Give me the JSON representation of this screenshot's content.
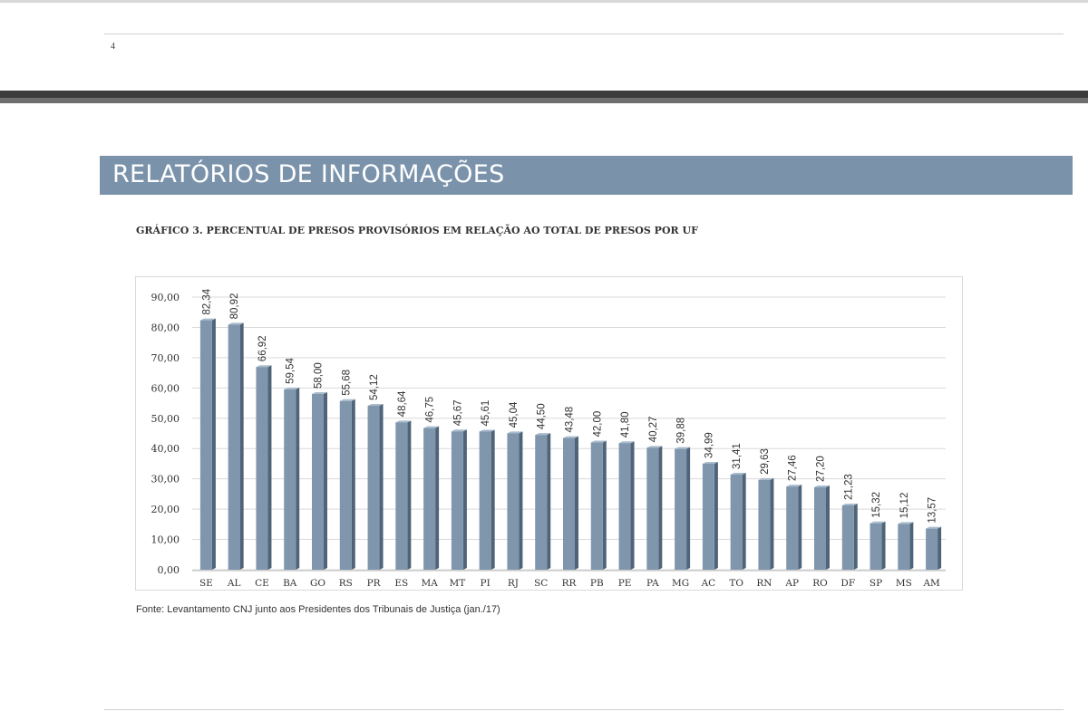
{
  "top_page": {
    "page_number": "4"
  },
  "section_banner": {
    "title": "RELATÓRIOS DE INFORMAÇÕES"
  },
  "chart_data": {
    "type": "bar",
    "title": "GRÁFICO 3. PERCENTUAL DE PRESOS PROVISÓRIOS EM RELAÇÃO AO TOTAL DE PRESOS POR UF",
    "categories": [
      "SE",
      "AL",
      "CE",
      "BA",
      "GO",
      "RS",
      "PR",
      "ES",
      "MA",
      "MT",
      "PI",
      "RJ",
      "SC",
      "RR",
      "PB",
      "PE",
      "PA",
      "MG",
      "AC",
      "TO",
      "RN",
      "AP",
      "RO",
      "DF",
      "SP",
      "MS",
      "AM"
    ],
    "values": [
      82.34,
      80.92,
      66.92,
      59.54,
      58.0,
      55.68,
      54.12,
      48.64,
      46.75,
      45.67,
      45.61,
      45.04,
      44.5,
      43.48,
      42.0,
      41.8,
      40.27,
      39.88,
      34.99,
      31.41,
      29.63,
      27.46,
      27.2,
      21.23,
      15.32,
      15.12,
      13.57
    ],
    "value_labels": [
      "82,34",
      "80,92",
      "66,92",
      "59,54",
      "58,00",
      "55,68",
      "54,12",
      "48,64",
      "46,75",
      "45,67",
      "45,61",
      "45,04",
      "44,50",
      "43,48",
      "42,00",
      "41,80",
      "40,27",
      "39,88",
      "34,99",
      "31,41",
      "29,63",
      "27,46",
      "27,20",
      "21,23",
      "15,32",
      "15,12",
      "13,57"
    ],
    "yticks": [
      0,
      10,
      20,
      30,
      40,
      50,
      60,
      70,
      80,
      90
    ],
    "ytick_labels": [
      "0,00",
      "10,00",
      "20,00",
      "30,00",
      "40,00",
      "50,00",
      "60,00",
      "70,00",
      "80,00",
      "90,00"
    ],
    "ylim": [
      0,
      90
    ],
    "xlabel": "",
    "ylabel": "",
    "grid": true,
    "bar_color": "#7f96ad",
    "source": "Fonte: Levantamento CNJ junto aos Presidentes dos Tribunais de Justiça (jan./17)"
  }
}
